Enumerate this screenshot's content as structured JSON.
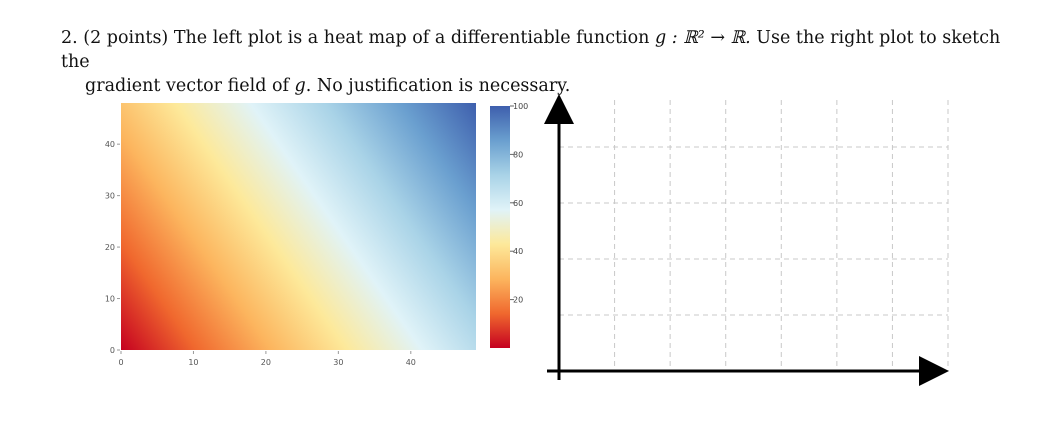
{
  "question": {
    "number": "2.",
    "points": "(2 points)",
    "text_a": "The left plot is a heat map of a differentiable function",
    "func": "g : ℝ² → ℝ.",
    "text_b": "Use the right plot to sketch the",
    "line2_a": "gradient vector field of",
    "g": "g",
    "line2_b": ". No justification is necessary."
  },
  "chart_data": [
    {
      "type": "heatmap",
      "x_ticks": [
        0,
        10,
        20,
        30,
        40
      ],
      "y_ticks": [
        0,
        10,
        20,
        30,
        40
      ],
      "xlim": [
        0,
        49
      ],
      "ylim": [
        0,
        48
      ],
      "colorscale": [
        "#c50020",
        "#f0682e",
        "#fcb55e",
        "#fde99a",
        "#e0f3f8",
        "#a9d3e7",
        "#6a9fcf",
        "#3e5fad"
      ],
      "colorbar": {
        "ticks": [
          20,
          40,
          60,
          80,
          100
        ],
        "range": [
          0,
          100
        ]
      },
      "value_at_corners": {
        "bottom_left": 0,
        "top_right": 100
      },
      "grid": false
    },
    {
      "type": "scatter",
      "description_free": true,
      "grid": true,
      "grid_style": "dashed",
      "axes_arrows": true,
      "vertical_gridlines": 7,
      "horizontal_gridlines": 4
    }
  ]
}
